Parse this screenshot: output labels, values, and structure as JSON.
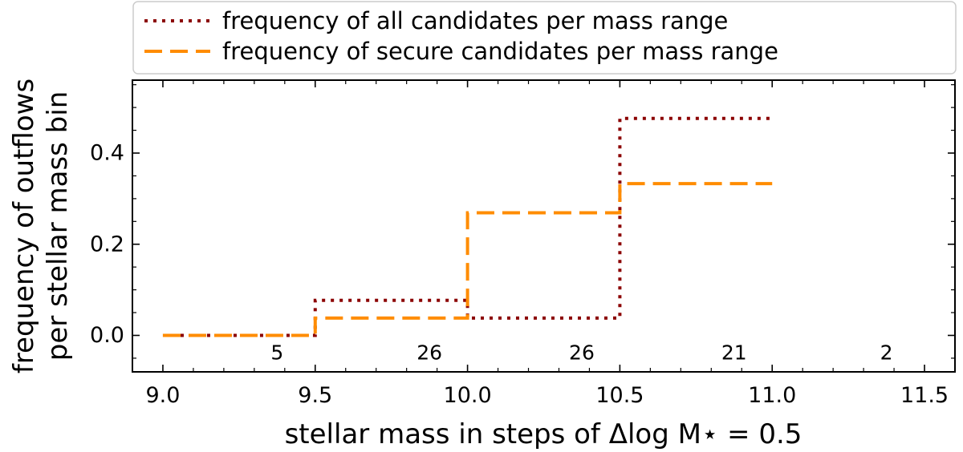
{
  "chart_data": {
    "type": "line",
    "step": "post",
    "xlabel": "stellar mass in steps of Δlog M⋆ = 0.5",
    "ylabel_line1": "frequency of outflows",
    "ylabel_line2": "per stellar mass bin",
    "xlim": [
      8.9,
      11.6
    ],
    "ylim": [
      -0.08,
      0.56
    ],
    "xticks": [
      9.0,
      9.5,
      10.0,
      10.5,
      11.0,
      11.5
    ],
    "xtick_labels": [
      "9.0",
      "9.5",
      "10.0",
      "10.5",
      "11.0",
      "11.5"
    ],
    "yticks": [
      0.0,
      0.2,
      0.4
    ],
    "ytick_labels": [
      "0.0",
      "0.2",
      "0.4"
    ],
    "grid": false,
    "legend_position": "top, above plot",
    "series": [
      {
        "name": "frequency of all candidates per mass range",
        "style": "dotted",
        "color": "#8b0000",
        "x": [
          9.0,
          9.5,
          10.0,
          10.5,
          11.0
        ],
        "y": [
          0.0,
          0.077,
          0.038,
          0.476,
          0.476
        ]
      },
      {
        "name": "frequency of secure candidates per mass range",
        "style": "dashed",
        "color": "#ff8c00",
        "x": [
          9.0,
          9.5,
          10.0,
          10.5,
          11.0
        ],
        "y": [
          0.0,
          0.038,
          0.269,
          0.333,
          0.333
        ]
      }
    ],
    "annotations": [
      {
        "x": 9.375,
        "text": "5"
      },
      {
        "x": 9.875,
        "text": "26"
      },
      {
        "x": 10.375,
        "text": "26"
      },
      {
        "x": 10.875,
        "text": "21"
      },
      {
        "x": 11.375,
        "text": "2"
      }
    ]
  }
}
